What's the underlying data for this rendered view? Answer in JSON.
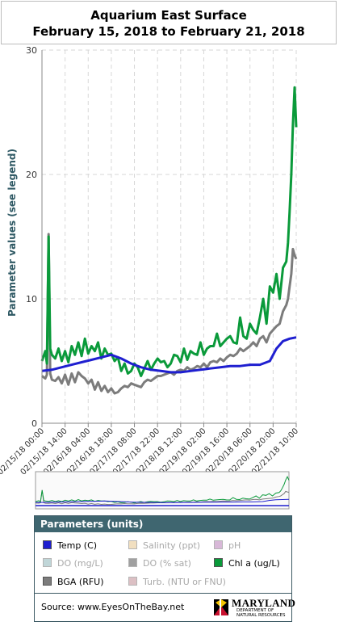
{
  "chart_data": {
    "type": "line",
    "title": "Aquarium East Surface",
    "subtitle": "February 15, 2018 to February 21, 2018",
    "ylabel": "Parameter values (see legend)",
    "ylim": [
      0,
      30
    ],
    "yticks": [
      0,
      10,
      20,
      30
    ],
    "grid": true,
    "xtick_labels": [
      "02/15/18 00:00",
      "02/15/18 14:00",
      "02/16/18 04:00",
      "02/16/18 18:00",
      "02/17/18 08:00",
      "02/17/18 22:00",
      "02/18/18 12:00",
      "02/19/18 02:00",
      "02/19/18 16:00",
      "02/20/18 06:00",
      "02/20/18 20:00",
      "02/21/18 10:00"
    ],
    "x_range_hours": [
      0,
      154
    ],
    "series": [
      {
        "name": "Chl a (ug/L)",
        "color": "#0a9a3a",
        "x": [
          0,
          2,
          3,
          4,
          5,
          6,
          8,
          10,
          12,
          14,
          16,
          18,
          20,
          22,
          24,
          26,
          28,
          30,
          32,
          34,
          36,
          38,
          40,
          42,
          44,
          46,
          48,
          50,
          52,
          54,
          56,
          58,
          60,
          62,
          64,
          66,
          68,
          70,
          72,
          74,
          76,
          78,
          80,
          82,
          84,
          86,
          88,
          90,
          92,
          94,
          96,
          98,
          100,
          102,
          104,
          106,
          108,
          110,
          112,
          114,
          116,
          118,
          120,
          122,
          124,
          126,
          128,
          130,
          132,
          134,
          136,
          138,
          140,
          142,
          144,
          146,
          148,
          149,
          150,
          151,
          152,
          153,
          154
        ],
        "y": [
          5,
          5.8,
          4.8,
          15,
          6,
          5.5,
          5.2,
          6,
          5,
          5.8,
          4.9,
          6.2,
          5.5,
          6.5,
          5.4,
          6.8,
          5.6,
          6.2,
          5.8,
          6.5,
          5.2,
          6,
          5.5,
          5.6,
          5,
          5.3,
          4.2,
          4.8,
          4,
          4.2,
          4.8,
          4.5,
          3.8,
          4.4,
          5,
          4.3,
          4.8,
          5.2,
          4.9,
          5,
          4.5,
          4.8,
          5.5,
          5.4,
          4.9,
          6,
          5.1,
          5.8,
          5.6,
          5.5,
          6.5,
          5.5,
          6,
          6.2,
          6.2,
          7.2,
          6.2,
          6.5,
          6.8,
          7,
          6.5,
          6.4,
          8.5,
          7,
          6.8,
          8,
          7.5,
          7.2,
          8.5,
          10,
          8,
          11,
          10.5,
          12,
          10,
          12.5,
          13,
          14.5,
          17,
          20,
          24,
          27,
          23.8
        ]
      },
      {
        "name": "BGA (RFU)",
        "color": "#7c7c7c",
        "x": [
          0,
          2,
          3,
          4,
          5,
          6,
          8,
          10,
          12,
          14,
          16,
          18,
          20,
          22,
          24,
          26,
          28,
          30,
          32,
          34,
          36,
          38,
          40,
          42,
          44,
          46,
          48,
          50,
          52,
          54,
          56,
          58,
          60,
          62,
          64,
          66,
          68,
          70,
          72,
          74,
          76,
          78,
          80,
          82,
          84,
          86,
          88,
          90,
          92,
          94,
          96,
          98,
          100,
          102,
          104,
          106,
          108,
          110,
          112,
          114,
          116,
          118,
          120,
          122,
          124,
          126,
          128,
          130,
          132,
          134,
          136,
          138,
          140,
          142,
          144,
          146,
          148,
          149,
          150,
          151,
          152,
          153,
          154
        ],
        "y": [
          3.8,
          3.6,
          3.9,
          15.2,
          4,
          3.5,
          3.4,
          3.7,
          3.2,
          3.9,
          3.1,
          4,
          3.3,
          4.1,
          3.8,
          3.6,
          3.2,
          3.5,
          2.7,
          3.3,
          2.6,
          3,
          2.5,
          2.8,
          2.4,
          2.5,
          2.8,
          3,
          2.9,
          3.2,
          3.1,
          3,
          2.9,
          3.3,
          3.5,
          3.4,
          3.6,
          3.8,
          3.8,
          3.9,
          4,
          4.1,
          3.9,
          4.2,
          4.3,
          4.2,
          4.5,
          4.3,
          4.4,
          4.6,
          4.5,
          4.8,
          4.5,
          4.9,
          5,
          4.9,
          5.2,
          5,
          5.3,
          5.5,
          5.4,
          5.6,
          6,
          5.8,
          6,
          6.2,
          6.5,
          6.2,
          6.8,
          7,
          6.5,
          7.2,
          7.5,
          7.8,
          8,
          9,
          9.5,
          10,
          11,
          12,
          14,
          13.5,
          13.2
        ]
      },
      {
        "name": "Temp (C)",
        "color": "#1f1fd0",
        "x": [
          0,
          6,
          12,
          18,
          24,
          30,
          36,
          42,
          48,
          54,
          60,
          66,
          72,
          78,
          84,
          90,
          96,
          102,
          108,
          114,
          120,
          126,
          132,
          138,
          142,
          146,
          150,
          154
        ],
        "y": [
          4.2,
          4.3,
          4.5,
          4.7,
          4.9,
          5.1,
          5.3,
          5.5,
          5.2,
          4.8,
          4.5,
          4.3,
          4.2,
          4.1,
          4.1,
          4.2,
          4.3,
          4.4,
          4.5,
          4.6,
          4.6,
          4.7,
          4.7,
          5,
          6,
          6.6,
          6.8,
          6.9
        ]
      }
    ]
  },
  "legend": {
    "header": "Parameters (units)",
    "items": [
      {
        "label": "Temp (C)",
        "color": "#1f1fd0",
        "active": true
      },
      {
        "label": "Salinity (ppt)",
        "color": "#f1dfc0",
        "active": false
      },
      {
        "label": "pH",
        "color": "#d8b8d8",
        "active": false
      },
      {
        "label": "DO (mg/L)",
        "color": "#c0d6d8",
        "active": false
      },
      {
        "label": "DO (% sat)",
        "color": "#a0a0a0",
        "active": false
      },
      {
        "label": "Chl a (ug/L)",
        "color": "#0a9a3a",
        "active": true
      },
      {
        "label": "BGA (RFU)",
        "color": "#7c7c7c",
        "active": true
      },
      {
        "label": "Turb. (NTU or FNU)",
        "color": "#dcc0c4",
        "active": false
      }
    ]
  },
  "source": "Source: www.EyesOnTheBay.net",
  "logo": {
    "name": "MARYLAND",
    "department": "DEPARTMENT OF NATURAL RESOURCES"
  }
}
